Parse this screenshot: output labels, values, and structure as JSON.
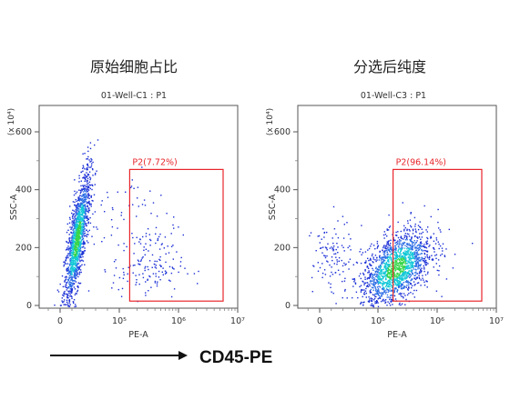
{
  "figure": {
    "footer_label": "CD45-PE",
    "colors": {
      "gate": "#e8262b",
      "text": "#222222",
      "density_low": "#1b2fd6",
      "density_mid": "#12c8d8",
      "density_high": "#39d64a"
    }
  },
  "chart_data": [
    {
      "type": "scatter",
      "heading": "原始细胞占比",
      "title": "01-Well-C1 : P1",
      "xlabel": "PE-A",
      "ylabel": "SSC-A",
      "y_multiplier": "(x 10⁴)",
      "x_scale": "biexponential",
      "x_ticks": [
        "0",
        "10⁵",
        "10⁶",
        "10⁷"
      ],
      "y_ticks": [
        "0",
        "200",
        "400",
        "600"
      ],
      "ylim": [
        0,
        700
      ],
      "gate": {
        "label": "P2(7.72%)",
        "x_range": [
          150000,
          7000000
        ],
        "y_range": [
          15,
          470
        ],
        "percent": 7.72
      },
      "populations": [
        {
          "name": "main",
          "cx": 0.28,
          "cy": 230,
          "sx": 0.11,
          "sy": 75,
          "n": 1500,
          "tilt": 150,
          "dense": true
        },
        {
          "name": "gated",
          "cx": 1.47,
          "cy": 135,
          "sx": 0.3,
          "sy": 55,
          "n": 140,
          "tilt": 0,
          "dense": false
        },
        {
          "name": "scatter",
          "cx": 1.2,
          "cy": 300,
          "sx": 0.4,
          "sy": 85,
          "n": 70,
          "tilt": 0,
          "dense": false
        }
      ]
    },
    {
      "type": "scatter",
      "heading": "分选后纯度",
      "title": "01-Well-C3 : P1",
      "xlabel": "PE-A",
      "ylabel": "SSC-A",
      "y_multiplier": "(x 10⁴)",
      "x_scale": "biexponential",
      "x_ticks": [
        "0",
        "10⁵",
        "10⁶",
        "10⁷"
      ],
      "y_ticks": [
        "0",
        "200",
        "400",
        "600"
      ],
      "ylim": [
        0,
        700
      ],
      "gate": {
        "label": "P2(96.14%)",
        "x_range": [
          180000,
          7000000
        ],
        "y_range": [
          15,
          470
        ],
        "percent": 96.14
      },
      "populations": [
        {
          "name": "main",
          "cx": 1.3,
          "cy": 130,
          "sx": 0.3,
          "sy": 60,
          "n": 1700,
          "tilt": 55,
          "dense": true
        },
        {
          "name": "left",
          "cx": 0.2,
          "cy": 165,
          "sx": 0.17,
          "sy": 65,
          "n": 110,
          "tilt": 0,
          "dense": false
        }
      ]
    }
  ]
}
